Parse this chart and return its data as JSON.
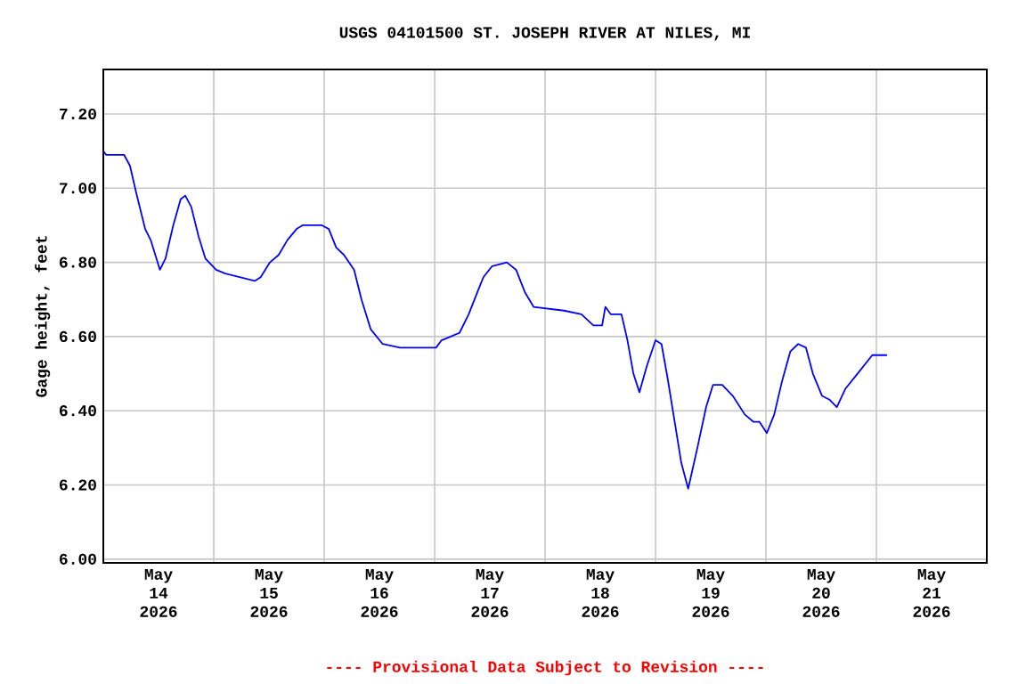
{
  "chart_data": {
    "type": "line",
    "title": "USGS 04101500 ST. JOSEPH RIVER AT NILES, MI",
    "ylabel": "Gage height, feet",
    "annotations": [
      "---- Provisional Data Subject to Revision ----"
    ],
    "color": "#0000ff",
    "line_style": "solid",
    "grid": true,
    "xlim": [
      "2026-05-14T00:00",
      "2026-05-22T00:00"
    ],
    "ylim": [
      5.99,
      7.32
    ],
    "xticks": [
      {
        "value": "2026-05-15T00:00",
        "label": null
      },
      {
        "value": "2026-05-16T00:00",
        "label": null
      },
      {
        "value": "2026-05-17T00:00",
        "label": null
      },
      {
        "value": "2026-05-18T00:00",
        "label": null
      },
      {
        "value": "2026-05-19T00:00",
        "label": null
      },
      {
        "value": "2026-05-20T00:00",
        "label": null
      },
      {
        "value": "2026-05-21T00:00",
        "label": null
      },
      {
        "value": "2026-05-14T12:00",
        "label": "May 14 2026"
      },
      {
        "value": "2026-05-15T12:00",
        "label": "May 15 2026"
      },
      {
        "value": "2026-05-16T12:00",
        "label": "May 16 2026"
      },
      {
        "value": "2026-05-17T12:00",
        "label": "May 17 2026"
      },
      {
        "value": "2026-05-18T12:00",
        "label": "May 18 2026"
      },
      {
        "value": "2026-05-19T12:00",
        "label": "May 19 2026"
      },
      {
        "value": "2026-05-20T12:00",
        "label": "May 20 2026"
      },
      {
        "value": "2026-05-21T12:00",
        "label": "May 21 2026"
      }
    ],
    "yticks": [
      {
        "value": 6.0,
        "label": "6.00"
      },
      {
        "value": 6.2,
        "label": "6.20"
      },
      {
        "value": 6.4,
        "label": "6.40"
      },
      {
        "value": 6.6,
        "label": "6.60"
      },
      {
        "value": 6.8,
        "label": "6.80"
      },
      {
        "value": 7.0,
        "label": "7.00"
      },
      {
        "value": 7.2,
        "label": "7.20"
      }
    ],
    "x": [
      "2026-05-14T00:00",
      "2026-05-14T00:36",
      "2026-05-14T04:30",
      "2026-05-14T05:48",
      "2026-05-14T07:06",
      "2026-05-14T09:06",
      "2026-05-14T10:18",
      "2026-05-14T12:18",
      "2026-05-14T13:30",
      "2026-05-14T15:12",
      "2026-05-14T16:48",
      "2026-05-14T17:48",
      "2026-05-14T19:06",
      "2026-05-14T20:42",
      "2026-05-14T22:12",
      "2026-05-15T00:30",
      "2026-05-15T02:30",
      "2026-05-15T05:42",
      "2026-05-15T08:54",
      "2026-05-15T10:12",
      "2026-05-15T12:12",
      "2026-05-15T14:06",
      "2026-05-15T16:00",
      "2026-05-15T18:00",
      "2026-05-15T19:18",
      "2026-05-15T21:12",
      "2026-05-15T23:30",
      "2026-05-16T01:00",
      "2026-05-16T02:36",
      "2026-05-16T04:18",
      "2026-05-16T06:30",
      "2026-05-16T08:06",
      "2026-05-16T10:06",
      "2026-05-16T12:42",
      "2026-05-16T16:30",
      "2026-05-17T00:18",
      "2026-05-17T01:30",
      "2026-05-17T05:24",
      "2026-05-17T07:24",
      "2026-05-17T09:18",
      "2026-05-17T10:36",
      "2026-05-17T12:30",
      "2026-05-17T15:42",
      "2026-05-17T17:42",
      "2026-05-17T19:36",
      "2026-05-17T21:30",
      "2026-05-18T04:06",
      "2026-05-18T07:54",
      "2026-05-18T10:30",
      "2026-05-18T12:24",
      "2026-05-18T13:06",
      "2026-05-18T14:18",
      "2026-05-18T16:36",
      "2026-05-18T17:54",
      "2026-05-18T19:12",
      "2026-05-18T20:30",
      "2026-05-18T22:06",
      "2026-05-19T00:00",
      "2026-05-19T01:18",
      "2026-05-19T02:36",
      "2026-05-19T04:18",
      "2026-05-19T05:36",
      "2026-05-19T07:06",
      "2026-05-19T09:06",
      "2026-05-19T11:00",
      "2026-05-19T12:30",
      "2026-05-19T14:30",
      "2026-05-19T16:48",
      "2026-05-19T19:24",
      "2026-05-19T21:18",
      "2026-05-19T22:36",
      "2026-05-20T00:12",
      "2026-05-20T01:48",
      "2026-05-20T03:30",
      "2026-05-20T05:18",
      "2026-05-20T07:00",
      "2026-05-20T08:42",
      "2026-05-20T10:12",
      "2026-05-20T12:12",
      "2026-05-20T13:48",
      "2026-05-20T15:24",
      "2026-05-20T17:18",
      "2026-05-20T19:54",
      "2026-05-20T23:06",
      "2026-05-21T00:18",
      "2026-05-21T02:18"
    ],
    "values": [
      7.1,
      7.09,
      7.09,
      7.06,
      6.99,
      6.89,
      6.86,
      6.78,
      6.81,
      6.9,
      6.97,
      6.98,
      6.95,
      6.87,
      6.81,
      6.78,
      6.77,
      6.76,
      6.75,
      6.76,
      6.8,
      6.82,
      6.86,
      6.89,
      6.9,
      6.9,
      6.9,
      6.89,
      6.84,
      6.82,
      6.78,
      6.7,
      6.62,
      6.58,
      6.57,
      6.57,
      6.59,
      6.61,
      6.66,
      6.72,
      6.76,
      6.79,
      6.8,
      6.78,
      6.72,
      6.68,
      6.67,
      6.66,
      6.63,
      6.63,
      6.68,
      6.66,
      6.66,
      6.59,
      6.5,
      6.45,
      6.52,
      6.59,
      6.58,
      6.49,
      6.36,
      6.26,
      6.19,
      6.3,
      6.41,
      6.47,
      6.47,
      6.44,
      6.39,
      6.37,
      6.37,
      6.34,
      6.39,
      6.48,
      6.56,
      6.58,
      6.57,
      6.5,
      6.44,
      6.43,
      6.41,
      6.46,
      6.5,
      6.55,
      6.55,
      6.55
    ]
  }
}
